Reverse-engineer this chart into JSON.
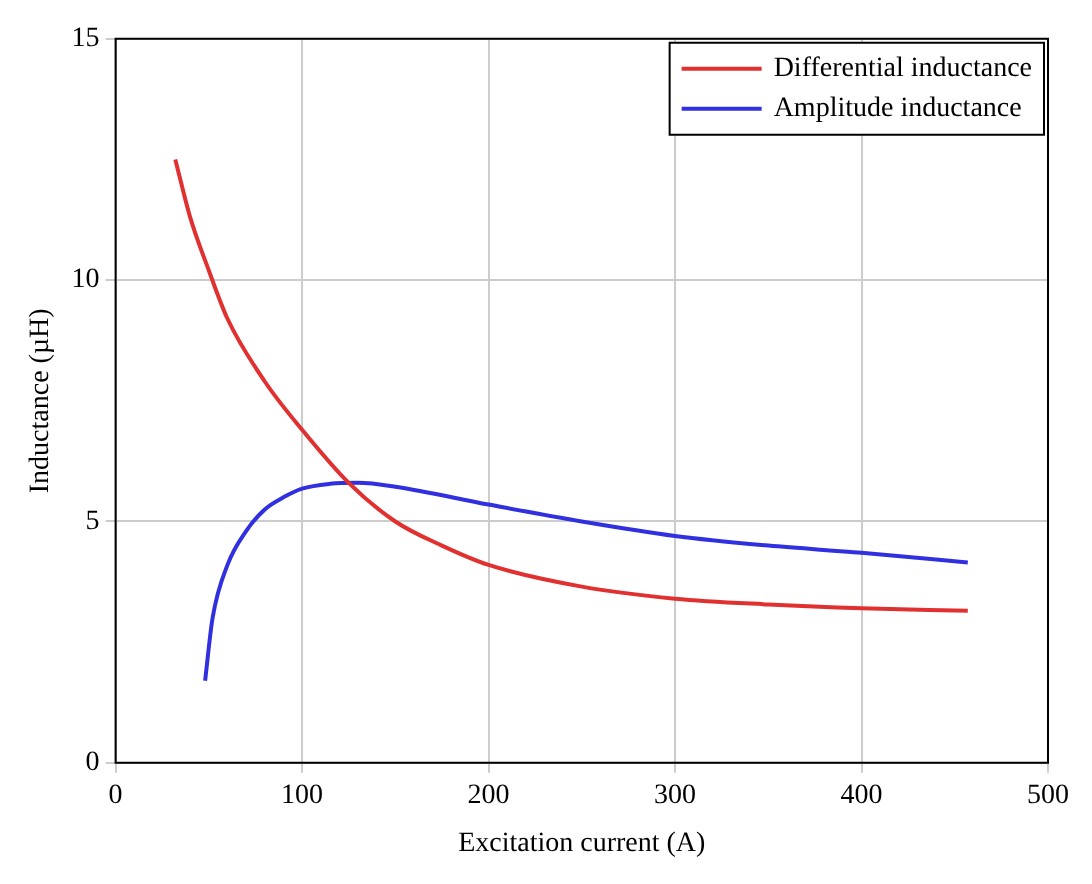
{
  "chart_data": {
    "type": "line",
    "xlabel": "Excitation current (A)",
    "ylabel": "Inductance (µH)",
    "xlim": [
      0,
      500
    ],
    "xticks": [
      0,
      100,
      200,
      300,
      400,
      500
    ],
    "ylim": [
      0,
      15
    ],
    "yticks": [
      0,
      5,
      10,
      15
    ],
    "grid": true,
    "legend": "top right",
    "marker": "none",
    "line_style": "solid",
    "series": [
      {
        "name": "Differential inductance",
        "color": "#e03030",
        "x": [
          32,
          40,
          50,
          60,
          80,
          100,
          125,
          150,
          175,
          200,
          250,
          300,
          350,
          400,
          457
        ],
        "values": [
          12.5,
          11.3,
          10.2,
          9.2,
          7.9,
          6.9,
          5.8,
          5.0,
          4.5,
          4.1,
          3.65,
          3.4,
          3.28,
          3.2,
          3.15
        ]
      },
      {
        "name": "Amplitude inductance",
        "color": "#3030e0",
        "x": [
          48,
          52,
          60,
          70,
          80,
          90,
          100,
          115,
          130,
          150,
          200,
          250,
          300,
          350,
          400,
          457
        ],
        "values": [
          1.7,
          3.0,
          4.1,
          4.8,
          5.25,
          5.5,
          5.68,
          5.78,
          5.8,
          5.72,
          5.35,
          5.0,
          4.7,
          4.5,
          4.35,
          4.15
        ]
      }
    ]
  }
}
